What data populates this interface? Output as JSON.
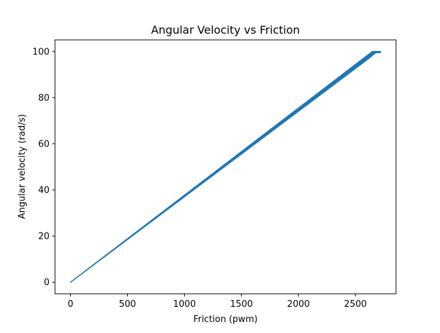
{
  "chart_data": {
    "type": "line",
    "title": "Angular Velocity vs Friction",
    "xlabel": "Friction (pwm)",
    "ylabel": "Angular velocity (rad/s)",
    "xlim": [
      -136,
      2856
    ],
    "ylim": [
      -5,
      105
    ],
    "xticks": [
      0,
      500,
      1000,
      1500,
      2000,
      2500
    ],
    "yticks": [
      0,
      20,
      40,
      60,
      80,
      100
    ],
    "grid": false,
    "legend": "none",
    "series": [
      {
        "color": "#1f77b4",
        "band": {
          "x": [
            0,
            2650,
            2720,
            2720,
            2680,
            2600,
            0
          ],
          "y": [
            0,
            100,
            100,
            99.5,
            99.5,
            96.3,
            0
          ]
        }
      }
    ]
  }
}
